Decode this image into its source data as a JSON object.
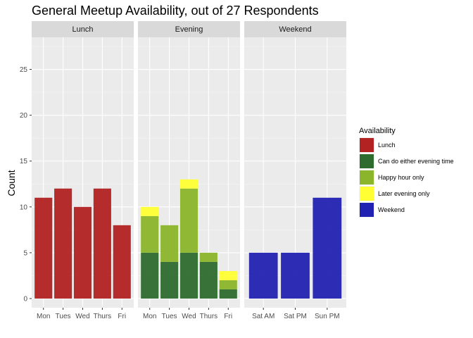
{
  "chart_data": {
    "type": "bar",
    "stacked": true,
    "title": "General Meetup Availability, out of 27 Respondents",
    "xlabel": "",
    "ylabel": "Count",
    "ylim": [
      -1,
      28.5
    ],
    "yticks": [
      0,
      5,
      10,
      15,
      20,
      25
    ],
    "grid": true,
    "legend": {
      "title": "Availability",
      "placement": "right",
      "items": [
        {
          "label": "Lunch",
          "color": "#b22222"
        },
        {
          "label": "Can do either evening time",
          "color": "#2e6b2e"
        },
        {
          "label": "Happy hour only",
          "color": "#8bb52b"
        },
        {
          "label": "Later evening only",
          "color": "#ffff33"
        },
        {
          "label": "Weekend",
          "color": "#2222b2"
        }
      ]
    },
    "panels": [
      {
        "strip": "Lunch",
        "categories": [
          "Mon",
          "Tues",
          "Wed",
          "Thurs",
          "Fri"
        ],
        "series": [
          {
            "name": "Lunch",
            "color": "#b22222",
            "values": [
              11,
              12,
              10,
              12,
              8
            ]
          }
        ]
      },
      {
        "strip": "Evening",
        "categories": [
          "Mon",
          "Tues",
          "Wed",
          "Thurs",
          "Fri"
        ],
        "series": [
          {
            "name": "Can do either evening time",
            "color": "#2e6b2e",
            "values": [
              5,
              4,
              5,
              4,
              1
            ]
          },
          {
            "name": "Happy hour only",
            "color": "#8bb52b",
            "values": [
              4,
              4,
              7,
              1,
              1
            ]
          },
          {
            "name": "Later evening only",
            "color": "#ffff33",
            "values": [
              1,
              0,
              1,
              0,
              1
            ]
          }
        ]
      },
      {
        "strip": "Weekend",
        "categories": [
          "Sat AM",
          "Sat PM",
          "Sun PM"
        ],
        "series": [
          {
            "name": "Weekend",
            "color": "#2222b2",
            "values": [
              5,
              5,
              11
            ]
          }
        ]
      }
    ]
  }
}
